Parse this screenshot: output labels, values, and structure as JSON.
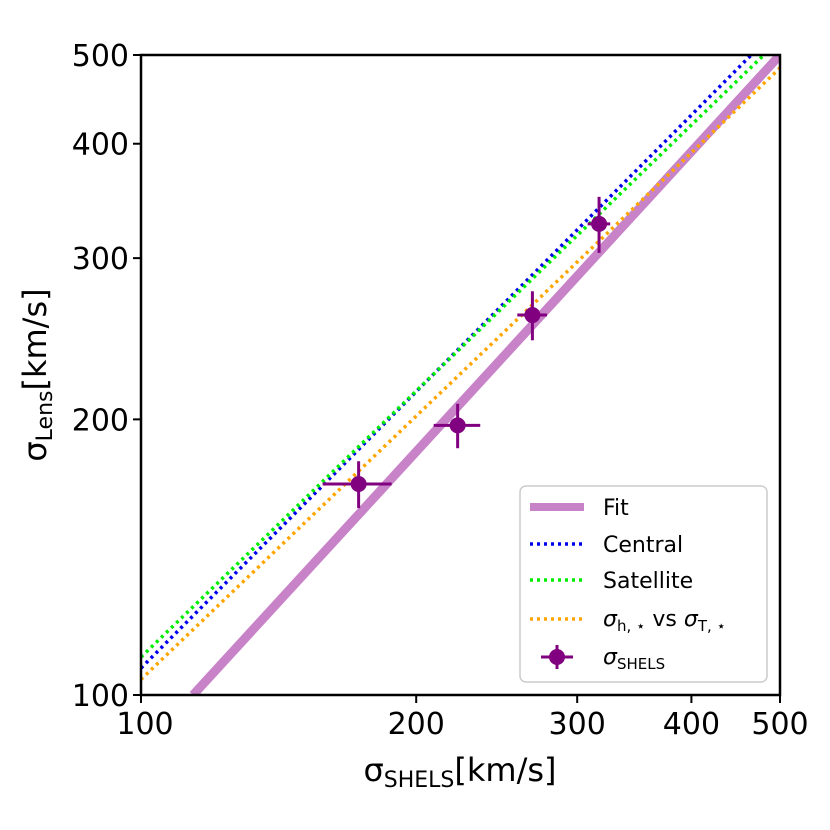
{
  "chart_data": {
    "type": "scatter",
    "x_scale": "log",
    "y_scale": "log",
    "xlim": [
      100,
      500
    ],
    "ylim": [
      100,
      500
    ],
    "xlabel": "σ_SHELS[km/s]",
    "ylabel": "σ_Lens[km/s]",
    "xlabel_parts": {
      "symbol": "σ",
      "subscript": "SHELS",
      "unit": "[km/s]"
    },
    "ylabel_parts": {
      "symbol": "σ",
      "subscript": "Lens",
      "unit": "[km/s]"
    },
    "x_ticks": [
      100,
      200,
      300,
      400,
      500
    ],
    "y_ticks": [
      100,
      200,
      300,
      400,
      500
    ],
    "x_tick_labels": [
      "100",
      "200",
      "300",
      "400",
      "500"
    ],
    "y_tick_labels": [
      "100",
      "200",
      "300",
      "400",
      "500"
    ],
    "legend_position": "lower right",
    "series": [
      {
        "name": "Fit",
        "kind": "line",
        "style": "solid",
        "color": "#c882c8",
        "x": [
          114,
          500
        ],
        "y": [
          100,
          500
        ]
      },
      {
        "name": "Central",
        "kind": "line",
        "style": "dotted",
        "color": "#0000ee",
        "x": [
          100,
          465
        ],
        "y": [
          107,
          500
        ]
      },
      {
        "name": "Satellite",
        "kind": "line",
        "style": "dotted",
        "color": "#00ee00",
        "x": [
          100,
          480
        ],
        "y": [
          110,
          500
        ]
      },
      {
        "name": "σ_h,⋆ vs σ_T,⋆",
        "kind": "line",
        "style": "dotted",
        "color": "#ffa500",
        "x": [
          100,
          500
        ],
        "y": [
          104,
          484
        ]
      },
      {
        "name": "σ_SHELS",
        "kind": "errorbar",
        "color": "#800080",
        "points": [
          {
            "x": 173,
            "y": 170,
            "xerr": 15,
            "yerr": 10
          },
          {
            "x": 222,
            "y": 197,
            "xerr": 13,
            "yerr": 11
          },
          {
            "x": 268,
            "y": 260,
            "xerr": 10,
            "yerr": 16
          },
          {
            "x": 317,
            "y": 327,
            "xerr": 9,
            "yerr": 23
          }
        ]
      }
    ],
    "legend_labels": [
      {
        "series": "Fit",
        "text": "Fit"
      },
      {
        "series": "Central",
        "text": "Central"
      },
      {
        "series": "Satellite",
        "text": "Satellite"
      },
      {
        "series": "sigma-h-star",
        "parts": [
          "σ",
          "h, ⋆",
          " vs ",
          "σ",
          "T, ⋆"
        ]
      },
      {
        "series": "sigma-shels",
        "parts": [
          "σ",
          "SHELS"
        ]
      }
    ]
  }
}
